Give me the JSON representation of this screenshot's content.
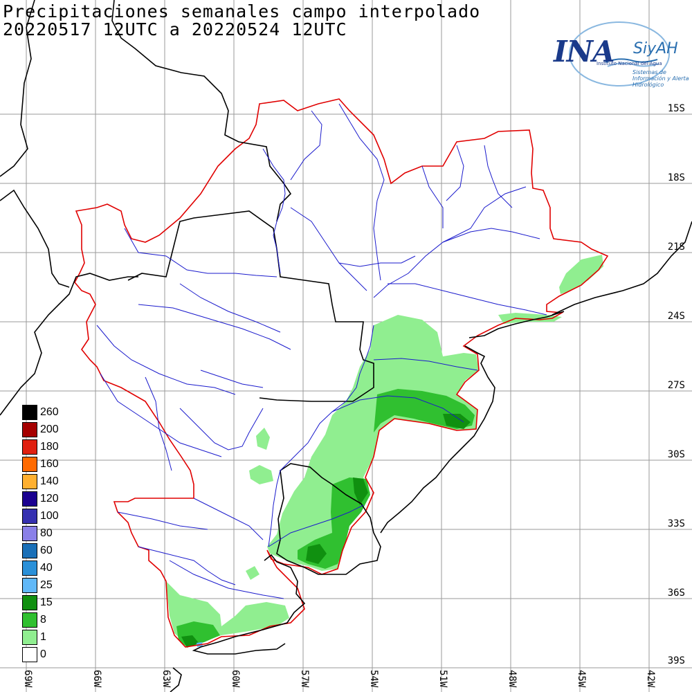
{
  "title": {
    "line1": "Precipitaciones semanales campo interpolado",
    "line2": "20220517 12UTC a 20220524 12UTC"
  },
  "logo": {
    "main": "INA",
    "product": "SiyAH",
    "subtitle1": "Instituto Nacional del Agua",
    "subtitle2": "Sistemas de Información y Alerta Hidrológico"
  },
  "lat_labels": [
    "15S",
    "18S",
    "21S",
    "24S",
    "27S",
    "30S",
    "33S",
    "36S",
    "39S"
  ],
  "lon_labels": [
    "69W",
    "66W",
    "63W",
    "60W",
    "57W",
    "54W",
    "51W",
    "48W",
    "45W",
    "42W"
  ],
  "legend": [
    {
      "label": "260",
      "color": "#000000"
    },
    {
      "label": "200",
      "color": "#a50000"
    },
    {
      "label": "180",
      "color": "#e02010"
    },
    {
      "label": "160",
      "color": "#ff6a00"
    },
    {
      "label": "140",
      "color": "#ffb030"
    },
    {
      "label": "120",
      "color": "#1a0090"
    },
    {
      "label": "100",
      "color": "#3530b0"
    },
    {
      "label": "80",
      "color": "#8a80e8"
    },
    {
      "label": "60",
      "color": "#1a70b8"
    },
    {
      "label": "40",
      "color": "#2a90d8"
    },
    {
      "label": "25",
      "color": "#60b8f8"
    },
    {
      "label": "15",
      "color": "#109010"
    },
    {
      "label": "8",
      "color": "#30c030"
    },
    {
      "label": "1",
      "color": "#90ee90"
    },
    {
      "label": "0",
      "color": "#ffffff"
    }
  ]
}
